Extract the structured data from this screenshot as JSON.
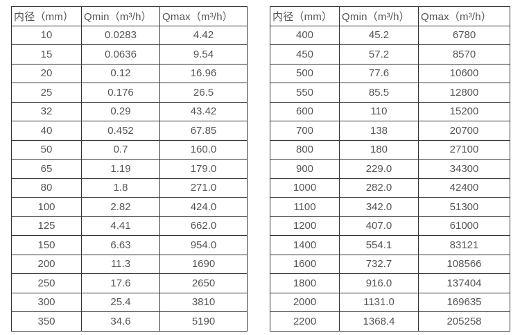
{
  "colors": {
    "border": "#333333",
    "text": "#555555",
    "background": "#ffffff"
  },
  "tables": [
    {
      "name": "flow-spec-table-small-diameters",
      "headers": [
        "内径（mm）",
        "Qmin（m³/h）",
        "Qmax（m³/h）"
      ],
      "rows": [
        [
          "10",
          "0.0283",
          "4.42"
        ],
        [
          "15",
          "0.0636",
          "9.54"
        ],
        [
          "20",
          "0.12",
          "16.96"
        ],
        [
          "25",
          "0.176",
          "26.5"
        ],
        [
          "32",
          "0.29",
          "43.42"
        ],
        [
          "40",
          "0.452",
          "67.85"
        ],
        [
          "50",
          "0.7",
          "160.0"
        ],
        [
          "65",
          "1.19",
          "179.0"
        ],
        [
          "80",
          "1.8",
          "271.0"
        ],
        [
          "100",
          "2.82",
          "424.0"
        ],
        [
          "125",
          "4.41",
          "662.0"
        ],
        [
          "150",
          "6.63",
          "954.0"
        ],
        [
          "200",
          "11.3",
          "1690"
        ],
        [
          "250",
          "17.6",
          "2650"
        ],
        [
          "300",
          "25.4",
          "3810"
        ],
        [
          "350",
          "34.6",
          "5190"
        ]
      ]
    },
    {
      "name": "flow-spec-table-large-diameters",
      "headers": [
        "内径（mm）",
        "Qmin（m³/h）",
        "Qmax（m³/h）"
      ],
      "rows": [
        [
          "400",
          "45.2",
          "6780"
        ],
        [
          "450",
          "57.2",
          "8570"
        ],
        [
          "500",
          "77.6",
          "10600"
        ],
        [
          "550",
          "85.5",
          "12800"
        ],
        [
          "600",
          "110",
          "15200"
        ],
        [
          "700",
          "138",
          "20700"
        ],
        [
          "800",
          "180",
          "27100"
        ],
        [
          "900",
          "229.0",
          "34300"
        ],
        [
          "1000",
          "282.0",
          "42400"
        ],
        [
          "1100",
          "342.0",
          "51300"
        ],
        [
          "1200",
          "407.0",
          "61000"
        ],
        [
          "1400",
          "554.1",
          "83121"
        ],
        [
          "1600",
          "732.7",
          "108566"
        ],
        [
          "1800",
          "916.0",
          "137404"
        ],
        [
          "2000",
          "1131.0",
          "169635"
        ],
        [
          "2200",
          "1368.4",
          "205258"
        ]
      ]
    }
  ]
}
